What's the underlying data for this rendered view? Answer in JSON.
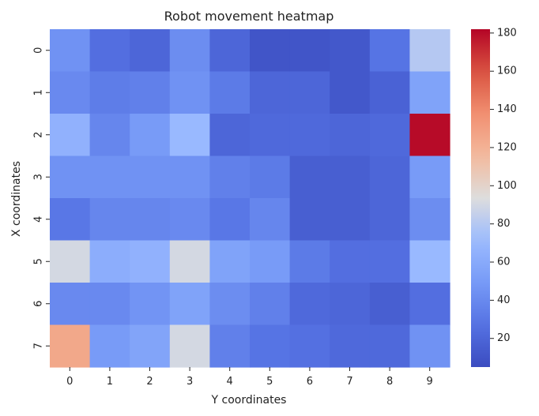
{
  "chart_data": {
    "type": "heatmap",
    "title": "Robot movement heatmap",
    "xlabel": "Y coordinates",
    "ylabel": "X coordinates",
    "x_categories": [
      "0",
      "1",
      "2",
      "3",
      "4",
      "5",
      "6",
      "7",
      "8",
      "9"
    ],
    "y_categories": [
      "0",
      "1",
      "2",
      "3",
      "4",
      "5",
      "6",
      "7"
    ],
    "values": [
      [
        45,
        25,
        20,
        42,
        20,
        10,
        10,
        12,
        28,
        80
      ],
      [
        40,
        33,
        35,
        45,
        32,
        20,
        20,
        12,
        18,
        55
      ],
      [
        65,
        38,
        50,
        70,
        20,
        22,
        22,
        20,
        22,
        180
      ],
      [
        45,
        45,
        45,
        45,
        35,
        32,
        16,
        16,
        20,
        50
      ],
      [
        30,
        38,
        38,
        40,
        30,
        38,
        16,
        16,
        20,
        42
      ],
      [
        90,
        62,
        65,
        90,
        55,
        50,
        32,
        25,
        25,
        70
      ],
      [
        40,
        40,
        46,
        55,
        42,
        35,
        22,
        20,
        16,
        25
      ],
      [
        125,
        50,
        56,
        90,
        35,
        28,
        26,
        22,
        22,
        45
      ]
    ],
    "colormap": "coolwarm",
    "vmin": 5,
    "vmax": 182,
    "colorbar_ticks": [
      20,
      40,
      60,
      80,
      100,
      120,
      140,
      160,
      180
    ]
  }
}
